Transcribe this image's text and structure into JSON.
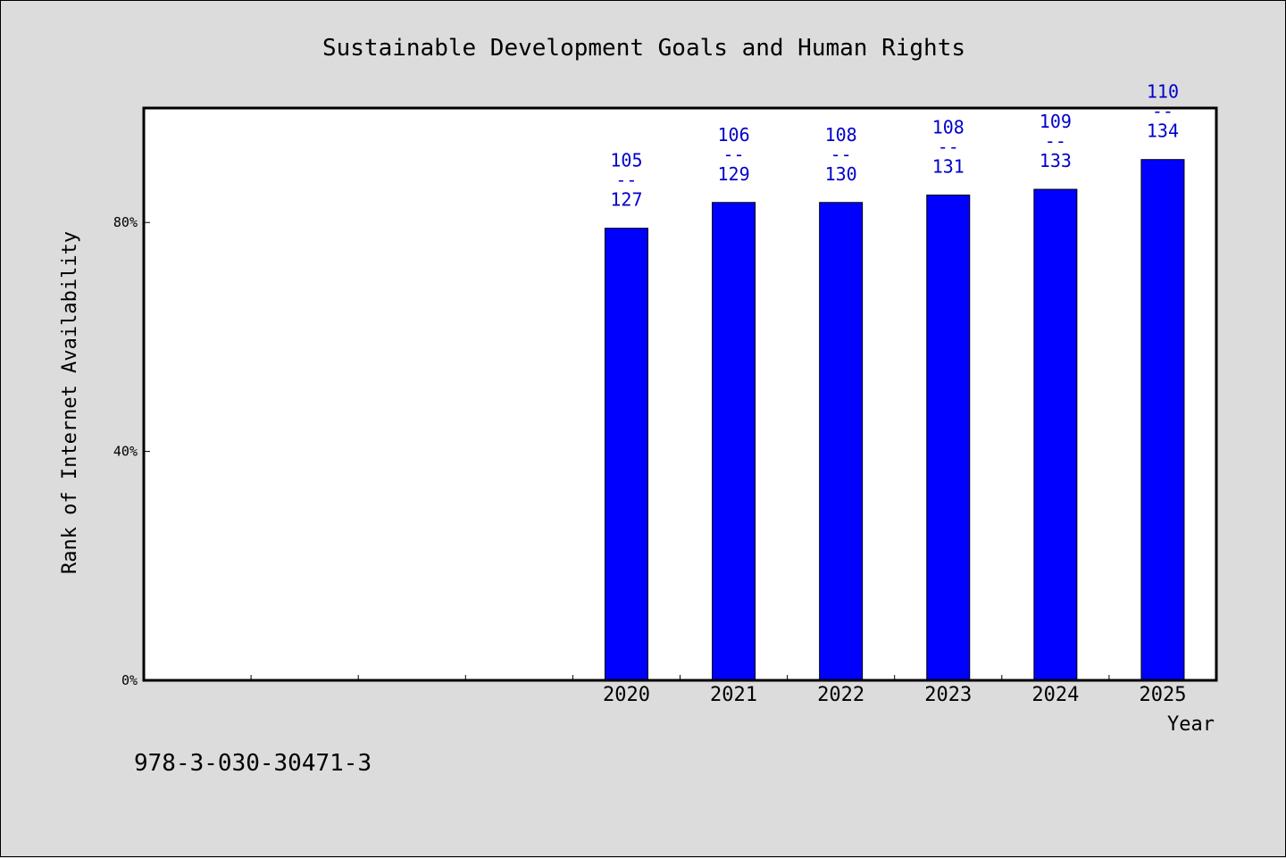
{
  "chart_data": {
    "type": "bar",
    "title": "Sustainable Development Goals and Human Rights",
    "xlabel": "Year",
    "ylabel": "Rank of Internet Availability",
    "categories": [
      "",
      "",
      "",
      "",
      "2020",
      "2021",
      "2022",
      "2023",
      "2024",
      "2025"
    ],
    "values": [
      null,
      null,
      null,
      null,
      79,
      83.5,
      83.5,
      84.8,
      85.8,
      91
    ],
    "value_labels": [
      null,
      null,
      null,
      null,
      {
        "top": "105",
        "mid": "--",
        "bottom": "127"
      },
      {
        "top": "106",
        "mid": "--",
        "bottom": "129"
      },
      {
        "top": "108",
        "mid": "--",
        "bottom": "130"
      },
      {
        "top": "108",
        "mid": "--",
        "bottom": "131"
      },
      {
        "top": "109",
        "mid": "--",
        "bottom": "133"
      },
      {
        "top": "110",
        "mid": "--",
        "bottom": "134"
      }
    ],
    "yticks": [
      {
        "value": 0,
        "label": "0%"
      },
      {
        "value": 40,
        "label": "40%"
      },
      {
        "value": 80,
        "label": "80%"
      }
    ],
    "ylim": [
      0,
      100
    ],
    "grid": false,
    "bar_color": "#0000ff",
    "label_color": "#0000cc"
  },
  "footnote": "978-3-030-30471-3"
}
